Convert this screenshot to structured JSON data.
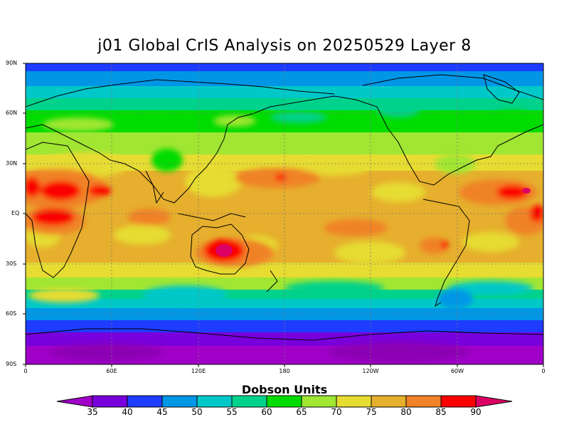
{
  "title": "j01 Global CrIS Analysis on 20250529 Layer 8",
  "colorbar": {
    "title": "Dobson Units",
    "labels": [
      "35",
      "40",
      "45",
      "50",
      "55",
      "60",
      "65",
      "70",
      "75",
      "80",
      "85",
      "90"
    ],
    "colors": [
      "#a000c8",
      "#7800dc",
      "#1e3cff",
      "#0096e6",
      "#00c8c8",
      "#00d28c",
      "#00dc00",
      "#a0e632",
      "#e6dc32",
      "#e6af2d",
      "#f08228",
      "#fa0000",
      "#dc0064"
    ]
  },
  "axes": {
    "lat_labels": [
      "90N",
      "60N",
      "30N",
      "EQ",
      "30S",
      "60S",
      "90S"
    ],
    "lon_labels": [
      "0",
      "60E",
      "120E",
      "180",
      "120W",
      "60W",
      "0"
    ]
  },
  "map": {
    "grid": true,
    "lat_range": [
      -90,
      90
    ],
    "lon_range": [
      0,
      360
    ]
  }
}
